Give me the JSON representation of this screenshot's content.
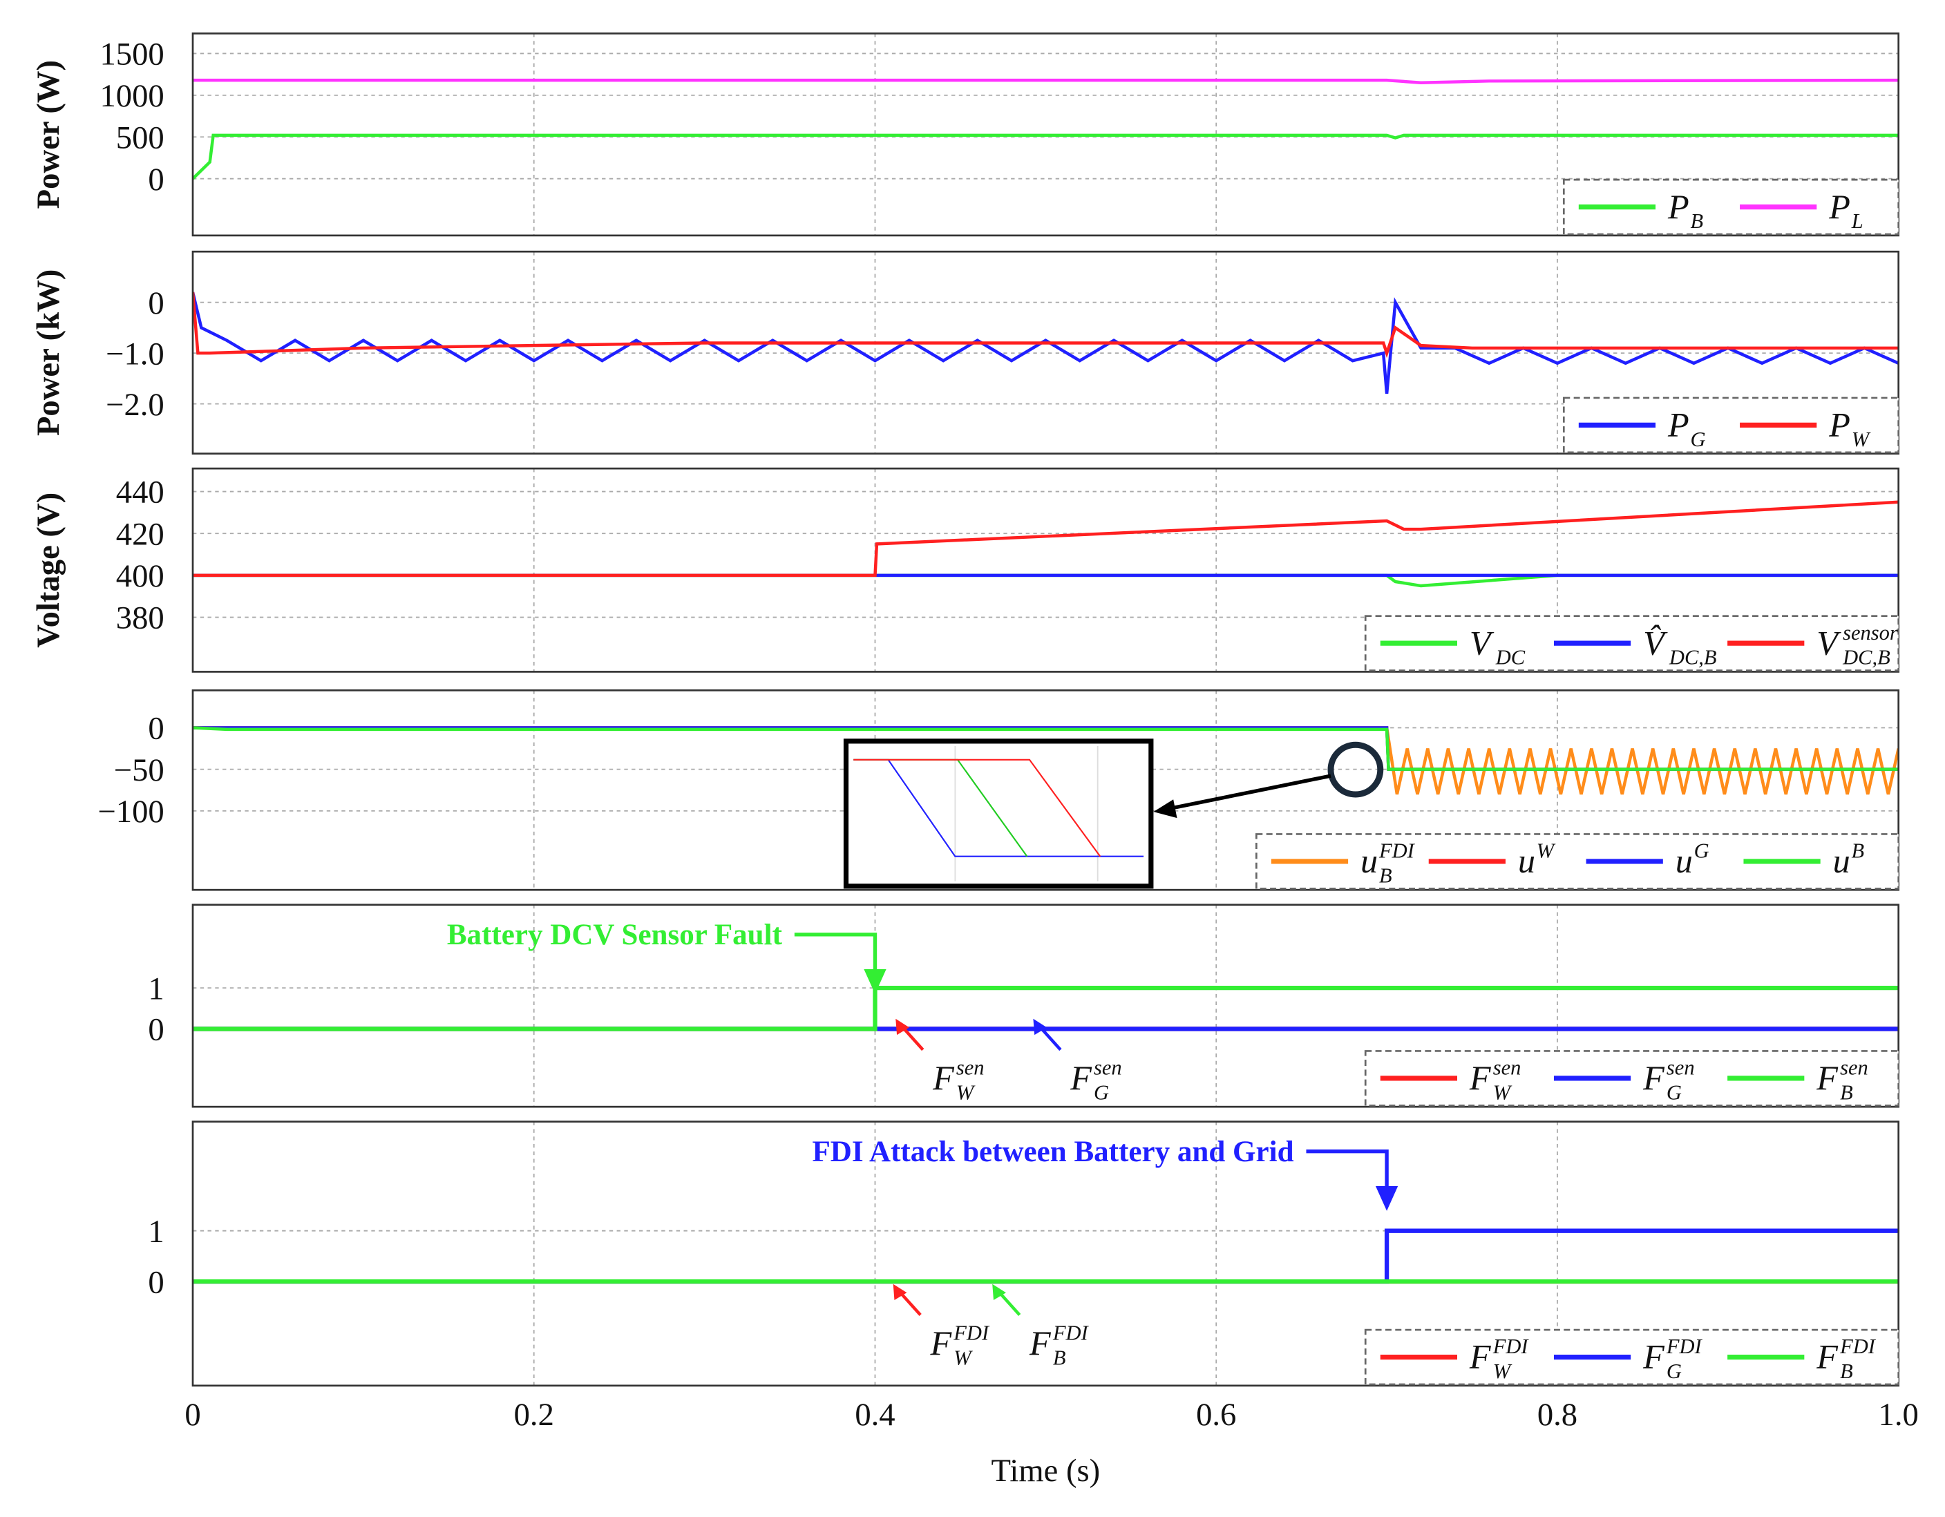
{
  "chart_data": [
    {
      "type": "line",
      "ylabel": "Power (W)",
      "xlim": [
        0,
        1
      ],
      "xticks": [
        0,
        0.2,
        0.4,
        0.6,
        0.8,
        1
      ],
      "ylim": [
        -680,
        1740
      ],
      "yticks": [
        0,
        500,
        1000,
        1500
      ],
      "grid": true,
      "legend": "lower right",
      "series": [
        {
          "name": "P",
          "subscript": "B",
          "color": "#33ee33",
          "x": [
            0,
            0.01,
            0.012,
            0.7,
            0.705,
            0.71,
            1
          ],
          "values": [
            0,
            200,
            520,
            520,
            490,
            520,
            520
          ]
        },
        {
          "name": "P",
          "subscript": "L",
          "color": "#ff33ff",
          "x": [
            0,
            0.7,
            0.72,
            0.76,
            1
          ],
          "values": [
            1180,
            1180,
            1150,
            1170,
            1180
          ]
        }
      ]
    },
    {
      "type": "line",
      "ylabel": "Power (kW)",
      "xlim": [
        0,
        1
      ],
      "xticks": [
        0,
        0.2,
        0.4,
        0.6,
        0.8,
        1
      ],
      "ylim": [
        -2.98,
        1.0
      ],
      "yticks": [
        0,
        {
          "value": -1,
          "label": "−1.0"
        },
        {
          "value": -2,
          "label": "−2.0"
        }
      ],
      "grid": true,
      "legend": "lower right",
      "series": [
        {
          "name": "P",
          "subscript": "G",
          "color": "#2020ff",
          "x": [
            0,
            0.005,
            0.02,
            0.04,
            0.06,
            0.08,
            0.1,
            0.12,
            0.14,
            0.16,
            0.18,
            0.2,
            0.22,
            0.24,
            0.26,
            0.28,
            0.3,
            0.32,
            0.34,
            0.36,
            0.38,
            0.4,
            0.42,
            0.44,
            0.46,
            0.48,
            0.5,
            0.52,
            0.54,
            0.56,
            0.58,
            0.6,
            0.62,
            0.64,
            0.66,
            0.68,
            0.698,
            0.7,
            0.705,
            0.72,
            0.74,
            0.76,
            0.78,
            0.8,
            0.82,
            0.84,
            0.86,
            0.88,
            0.9,
            0.92,
            0.94,
            0.96,
            0.98,
            1.0
          ],
          "values": [
            0.2,
            -0.5,
            -0.75,
            -1.15,
            -0.75,
            -1.15,
            -0.75,
            -1.15,
            -0.75,
            -1.15,
            -0.75,
            -1.15,
            -0.75,
            -1.15,
            -0.75,
            -1.15,
            -0.75,
            -1.15,
            -0.75,
            -1.15,
            -0.75,
            -1.15,
            -0.75,
            -1.15,
            -0.75,
            -1.15,
            -0.75,
            -1.15,
            -0.75,
            -1.15,
            -0.75,
            -1.15,
            -0.75,
            -1.15,
            -0.75,
            -1.15,
            -1.0,
            -1.8,
            0.0,
            -0.9,
            -0.9,
            -1.2,
            -0.9,
            -1.2,
            -0.9,
            -1.2,
            -0.9,
            -1.2,
            -0.9,
            -1.2,
            -0.9,
            -1.2,
            -0.9,
            -1.2
          ]
        },
        {
          "name": "P",
          "subscript": "W",
          "color": "#ff2020",
          "x": [
            0,
            0.003,
            0.01,
            0.1,
            0.3,
            0.698,
            0.7,
            0.705,
            0.72,
            0.75,
            1
          ],
          "values": [
            0.2,
            -1.0,
            -1.0,
            -0.9,
            -0.8,
            -0.8,
            -1.0,
            -0.5,
            -0.85,
            -0.9,
            -0.9
          ]
        }
      ]
    },
    {
      "type": "line",
      "ylabel": "Voltage (V)",
      "xlim": [
        0,
        1
      ],
      "xticks": [
        0,
        0.2,
        0.4,
        0.6,
        0.8,
        1
      ],
      "ylim": [
        354,
        451
      ],
      "yticks": [
        380,
        400,
        420,
        440
      ],
      "grid": true,
      "legend": "lower right",
      "series": [
        {
          "name": "V",
          "subscript": "DC",
          "color": "#33ee33",
          "x": [
            0,
            0.7,
            0.705,
            0.72,
            0.8,
            1
          ],
          "values": [
            400,
            400,
            397,
            395,
            400,
            400
          ]
        },
        {
          "name": "V̂",
          "subscript": "DC,B",
          "color": "#2020ff",
          "x": [
            0,
            1
          ],
          "values": [
            400,
            400
          ]
        },
        {
          "name": "V",
          "subscript": "DC,B",
          "superscript": "sensor",
          "color": "#ff2020",
          "x": [
            0,
            0.4,
            0.401,
            0.7,
            0.71,
            0.72,
            1
          ],
          "values": [
            400,
            400,
            415,
            426,
            422,
            422,
            435
          ]
        }
      ]
    },
    {
      "type": "line",
      "xlim": [
        0,
        1
      ],
      "xticks": [
        0,
        0.2,
        0.4,
        0.6,
        0.8,
        1
      ],
      "ylim": [
        -195,
        45
      ],
      "yticks": [
        0,
        {
          "value": -50,
          "label": "−50"
        },
        {
          "value": -100,
          "label": "−100"
        }
      ],
      "grid": true,
      "legend": "lower right",
      "series": [
        {
          "name": "u",
          "subscript": "B",
          "superscript": "FDI",
          "color": "#ff8c1a",
          "x": [
            0,
            0.7,
            0.706,
            0.712,
            0.718,
            0.724,
            0.73,
            0.736,
            0.742,
            0.748,
            0.754,
            0.76,
            0.766,
            0.772,
            0.778,
            0.784,
            0.79,
            0.796,
            0.802,
            0.808,
            0.814,
            0.82,
            0.826,
            0.832,
            0.838,
            0.844,
            0.85,
            0.856,
            0.862,
            0.868,
            0.874,
            0.88,
            0.886,
            0.892,
            0.898,
            0.904,
            0.91,
            0.916,
            0.922,
            0.928,
            0.934,
            0.94,
            0.946,
            0.952,
            0.958,
            0.964,
            0.97,
            0.976,
            0.982,
            0.988,
            0.994,
            1.0
          ],
          "values": [
            0,
            0,
            -80,
            -25,
            -80,
            -25,
            -80,
            -25,
            -80,
            -25,
            -80,
            -25,
            -80,
            -25,
            -80,
            -25,
            -80,
            -25,
            -80,
            -25,
            -80,
            -25,
            -80,
            -25,
            -80,
            -25,
            -80,
            -25,
            -80,
            -25,
            -80,
            -25,
            -80,
            -25,
            -80,
            -25,
            -80,
            -25,
            -80,
            -25,
            -80,
            -25,
            -80,
            -25,
            -80,
            -25,
            -80,
            -25,
            -80,
            -25,
            -80,
            -25
          ]
        },
        {
          "name": "u",
          "superscript": "W",
          "color": "#ff2020",
          "x": [
            0,
            0.7,
            0.701,
            1
          ],
          "values": [
            0,
            0,
            -50,
            -50
          ]
        },
        {
          "name": "u",
          "superscript": "G",
          "color": "#2020ff",
          "x": [
            0,
            0.7,
            0.701,
            1
          ],
          "values": [
            0,
            0,
            -50,
            -50
          ]
        },
        {
          "name": "u",
          "superscript": "B",
          "color": "#33ee33",
          "x": [
            0,
            0.02,
            0.7,
            0.701,
            1
          ],
          "values": [
            0,
            -2,
            -2,
            -50,
            -50
          ]
        }
      ]
    },
    {
      "type": "line",
      "xlim": [
        0,
        1
      ],
      "xticks": [
        0,
        0.2,
        0.4,
        0.6,
        0.8,
        1
      ],
      "ylim": [
        -1.9,
        3.03
      ],
      "yticks": [
        0,
        1
      ],
      "grid": true,
      "legend": "lower right",
      "series": [
        {
          "name": "F",
          "subscript": "W",
          "superscript": "sen",
          "color": "#ff2020",
          "x": [
            0,
            1
          ],
          "values": [
            0,
            0
          ]
        },
        {
          "name": "F",
          "subscript": "G",
          "superscript": "sen",
          "color": "#2020ff",
          "x": [
            0,
            1
          ],
          "values": [
            0,
            0
          ]
        },
        {
          "name": "F",
          "subscript": "B",
          "superscript": "sen",
          "color": "#33ee33",
          "x": [
            0,
            0.4,
            0.4,
            1
          ],
          "values": [
            0,
            0,
            1,
            1
          ]
        }
      ],
      "annotations": [
        {
          "text": "Battery DCV Sensor Fault",
          "color": "#33ee33"
        },
        {
          "text": "F",
          "subscript": "W",
          "superscript": "sen",
          "color": "#ff2020"
        },
        {
          "text": "F",
          "subscript": "G",
          "superscript": "sen",
          "color": "#2020ff"
        }
      ]
    },
    {
      "type": "line",
      "xlabel": "Time (s)",
      "xlim": [
        0,
        1
      ],
      "xticks": [
        0,
        0.2,
        0.4,
        0.6,
        0.8,
        {
          "value": 1,
          "label": "1.0"
        }
      ],
      "ylim": [
        -2.05,
        3.15
      ],
      "yticks": [
        0,
        1
      ],
      "grid": true,
      "legend": "lower right",
      "series": [
        {
          "name": "F",
          "subscript": "W",
          "superscript": "FDI",
          "color": "#ff2020",
          "x": [
            0,
            1
          ],
          "values": [
            0,
            0
          ]
        },
        {
          "name": "F",
          "subscript": "G",
          "superscript": "FDI",
          "color": "#2020ff",
          "x": [
            0,
            0.7,
            0.7,
            1
          ],
          "values": [
            0,
            0,
            1,
            1
          ]
        },
        {
          "name": "F",
          "subscript": "B",
          "superscript": "FDI",
          "color": "#33ee33",
          "x": [
            0,
            1
          ],
          "values": [
            0,
            0
          ]
        }
      ],
      "annotations": [
        {
          "text": "FDI Attack between Battery and Grid",
          "color": "#2020ff"
        },
        {
          "text": "F",
          "subscript": "W",
          "superscript": "FDI",
          "color": "#ff2020"
        },
        {
          "text": "F",
          "subscript": "B",
          "superscript": "FDI",
          "color": "#33ee33"
        }
      ]
    }
  ]
}
